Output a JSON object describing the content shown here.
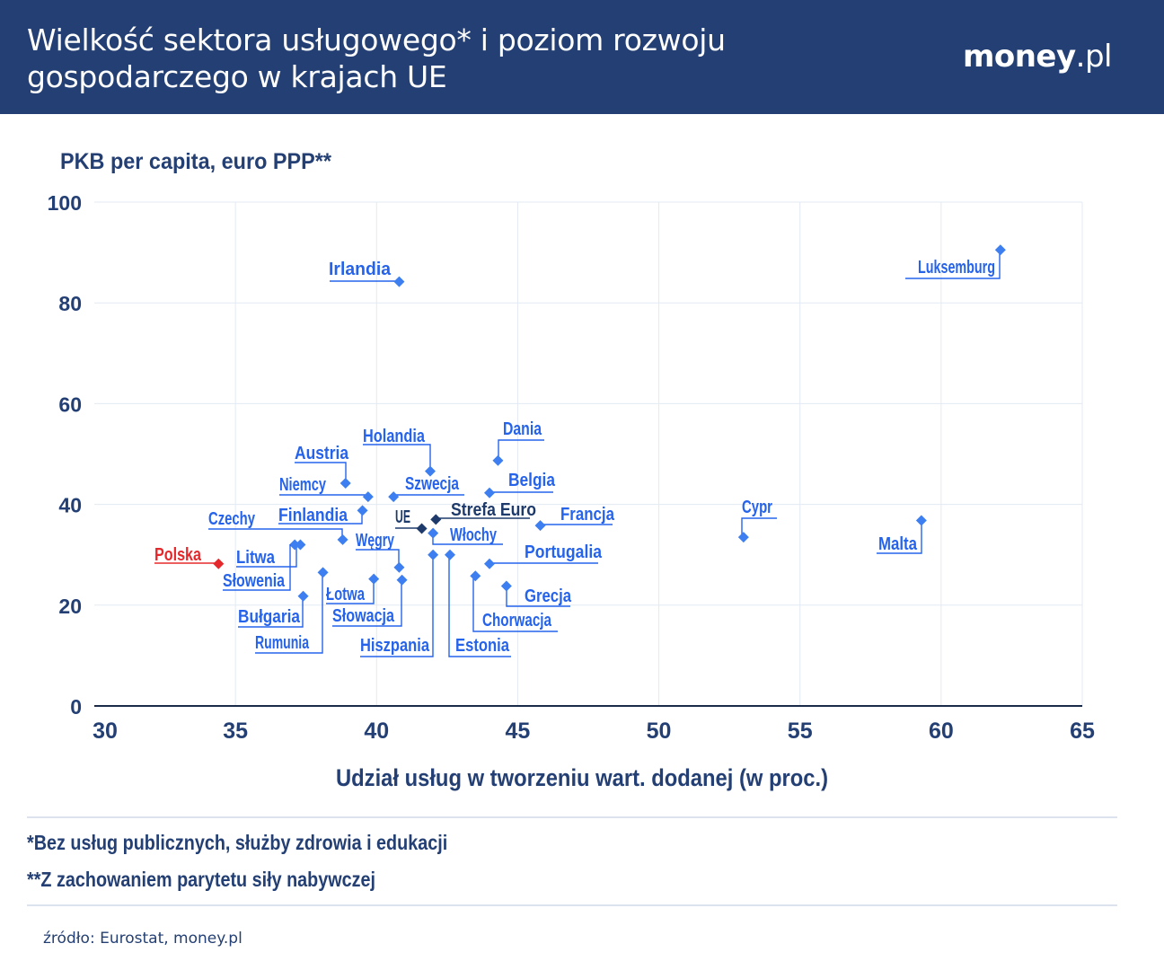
{
  "header": {
    "title": "Wielkość sektora usługowego* i poziom rozwoju gospodarczego w krajach UE",
    "logo_bold": "money",
    "logo_light": ".pl"
  },
  "colors": {
    "header_bg": "#233f73",
    "axis_text": "#233f73",
    "country_point": "#3d7ff0",
    "country_label": "#2563eb",
    "aggregate_point": "#1e3a6b",
    "highlight": "#e5282c",
    "grid": "#e3e9f3"
  },
  "chart_data": {
    "type": "scatter",
    "ylabel": "PKB per capita, euro PPP**",
    "xlabel": "Udział usług w tworzeniu wart. dodanej (w proc.)",
    "xlim": [
      30,
      65
    ],
    "ylim": [
      0,
      100
    ],
    "xticks": [
      30,
      35,
      40,
      45,
      50,
      55,
      60,
      65
    ],
    "yticks": [
      0,
      20,
      40,
      60,
      80,
      100
    ],
    "grid": true,
    "points": [
      {
        "label": "Luksemburg",
        "x": 62.1,
        "y": 90.5
      },
      {
        "label": "Irlandia",
        "x": 40.8,
        "y": 84.2
      },
      {
        "label": "Dania",
        "x": 44.3,
        "y": 48.7
      },
      {
        "label": "Holandia",
        "x": 41.9,
        "y": 46.6
      },
      {
        "label": "Austria",
        "x": 38.9,
        "y": 44.2
      },
      {
        "label": "Belgia",
        "x": 44.0,
        "y": 42.3
      },
      {
        "label": "Niemcy",
        "x": 39.7,
        "y": 41.5
      },
      {
        "label": "Szwecja",
        "x": 40.6,
        "y": 41.5
      },
      {
        "label": "Finlandia",
        "x": 39.5,
        "y": 38.8
      },
      {
        "label": "Strefa Euro",
        "x": 42.1,
        "y": 37.0,
        "group": "aggregate"
      },
      {
        "label": "Francja",
        "x": 45.8,
        "y": 35.8
      },
      {
        "label": "UE",
        "x": 41.6,
        "y": 35.2,
        "group": "aggregate"
      },
      {
        "label": "Włochy",
        "x": 42.0,
        "y": 34.3
      },
      {
        "label": "Czechy",
        "x": 38.8,
        "y": 33.0
      },
      {
        "label": "Litwa",
        "x": 37.1,
        "y": 32.0
      },
      {
        "label": "Słowenia",
        "x": 37.3,
        "y": 32.0
      },
      {
        "label": "Hiszpania",
        "x": 42.0,
        "y": 30.0
      },
      {
        "label": "Estonia",
        "x": 42.6,
        "y": 30.0
      },
      {
        "label": "Polska",
        "x": 34.4,
        "y": 28.2,
        "group": "highlight"
      },
      {
        "label": "Portugalia",
        "x": 44.0,
        "y": 28.2
      },
      {
        "label": "Węgry",
        "x": 40.8,
        "y": 27.5
      },
      {
        "label": "Rumunia",
        "x": 38.1,
        "y": 26.5
      },
      {
        "label": "Chorwacja",
        "x": 43.5,
        "y": 25.8
      },
      {
        "label": "Łotwa",
        "x": 39.9,
        "y": 25.2
      },
      {
        "label": "Słowacja",
        "x": 40.9,
        "y": 25.0
      },
      {
        "label": "Grecja",
        "x": 44.6,
        "y": 23.8
      },
      {
        "label": "Bułgaria",
        "x": 37.4,
        "y": 21.8
      },
      {
        "label": "Cypr",
        "x": 53.0,
        "y": 33.5
      },
      {
        "label": "Malta",
        "x": 59.3,
        "y": 36.8
      }
    ]
  },
  "footnotes": [
    "*Bez usług publicznych, służby zdrowia i edukacji",
    "**Z zachowaniem parytetu siły nabywczej"
  ],
  "source": "źródło: Eurostat, money.pl"
}
